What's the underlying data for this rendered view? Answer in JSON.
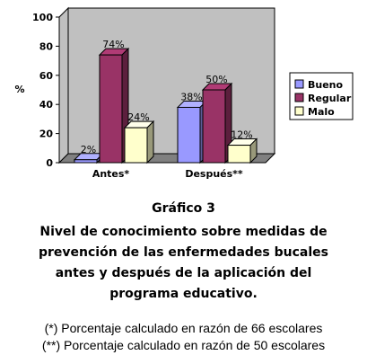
{
  "chart_data": {
    "type": "bar",
    "bar_style": "3d",
    "categories": [
      "Antes*",
      "Después**"
    ],
    "series": [
      {
        "name": "Bueno",
        "color": "#9999ff",
        "values": [
          2,
          38
        ],
        "labels": [
          "2%",
          "38%"
        ]
      },
      {
        "name": "Regular",
        "color": "#993366",
        "values": [
          74,
          50
        ],
        "labels": [
          "74%",
          "50%"
        ]
      },
      {
        "name": "Malo",
        "color": "#ffffcc",
        "values": [
          24,
          12
        ],
        "labels": [
          "24%",
          "12%"
        ]
      }
    ],
    "ylabel": "%",
    "ylim": [
      0,
      100
    ],
    "yticks": [
      "0",
      "20",
      "40",
      "60",
      "80",
      "100"
    ],
    "grid": false,
    "legend_position": "right",
    "wall_color": "#c0c0c0"
  },
  "caption": {
    "title": "Gráfico 3",
    "lines": [
      "Nivel de conocimiento sobre medidas de",
      "prevención de las enfermedades bucales",
      "antes y después de la aplicación del",
      "programa educativo."
    ]
  },
  "notes": [
    "(*) Porcentaje calculado en razón de 66 escolares",
    "(**) Porcentaje calculado en razón de 50 escolares"
  ]
}
